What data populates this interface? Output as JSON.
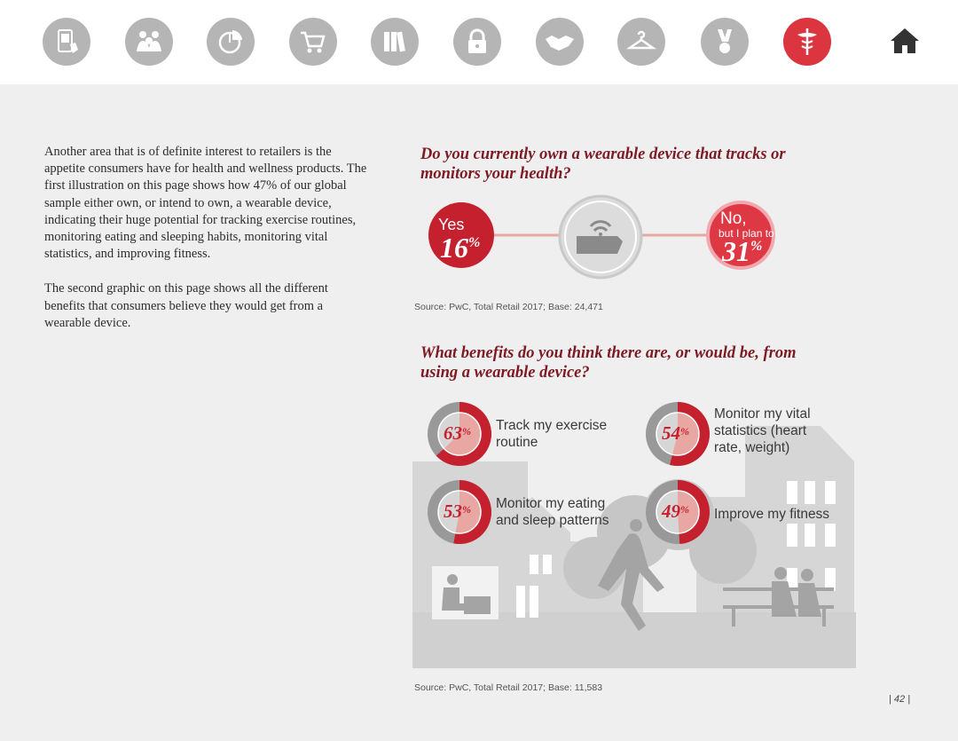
{
  "nav": {
    "icons": [
      {
        "name": "mobile-shopping-icon"
      },
      {
        "name": "people-icon"
      },
      {
        "name": "pie-chart-icon"
      },
      {
        "name": "shopping-cart-icon"
      },
      {
        "name": "books-icon"
      },
      {
        "name": "lock-icon"
      },
      {
        "name": "handshake-icon"
      },
      {
        "name": "hanger-icon"
      },
      {
        "name": "medal-icon"
      },
      {
        "name": "caduceus-icon"
      }
    ],
    "active_index": 9,
    "home_icon": "home-icon"
  },
  "intro": {
    "paragraph1": "Another area that is of definite interest to retailers is the appetite consumers have for health and wellness products. The first illustration on this page shows how 47% of our global sample either own, or intend to own, a wearable device, indicating their huge potential for tracking exercise routines, monitoring eating and sleeping habits, monitoring vital statistics, and improving fitness.",
    "paragraph2": "The second graphic on this page shows all the different benefits that consumers believe they would get from a wearable device."
  },
  "ownership": {
    "question": "Do you currently own a wearable device that tracks or monitors your health?",
    "yes_label": "Yes",
    "yes_value": "16",
    "no_label": "No,",
    "no_sublabel": "but I plan to",
    "no_value": "31",
    "percent_sign": "%",
    "source": "Source: PwC, Total Retail 2017; Base: 24,471"
  },
  "benefits": {
    "question": "What benefits do you think there are, or would be, from using a wearable device?",
    "source": "Source: PwC, Total Retail 2017; Base: 11,583"
  },
  "chart_data": {
    "type": "pie",
    "items": [
      {
        "label": "Track my exercise routine",
        "value": 63
      },
      {
        "label": "Monitor my vital statistics (heart rate, weight)",
        "value": 54
      },
      {
        "label": "Monitor my eating and sleep patterns",
        "value": 53
      },
      {
        "label": "Improve my fitness",
        "value": 49
      }
    ],
    "colors": {
      "primary": "#c4202d",
      "secondary": "#999999",
      "inner": "#e8a7a3"
    }
  },
  "page_number": "| 42 |"
}
